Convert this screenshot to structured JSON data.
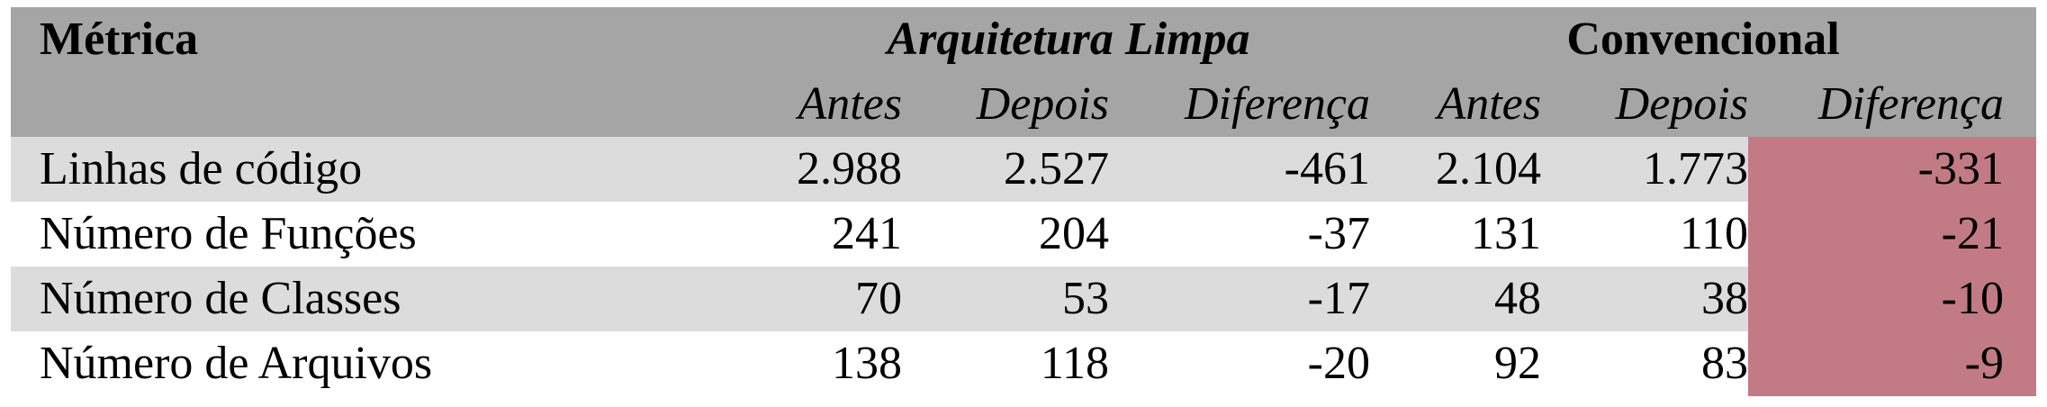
{
  "table": {
    "metric_header": "Métrica",
    "group_headers": {
      "clean": "Arquitetura Limpa",
      "conventional": "Convencional"
    },
    "sub_headers": {
      "before": "Antes",
      "after": "Depois",
      "difference": "Diferença"
    },
    "rows": [
      {
        "label": "Linhas de código",
        "clean_before": "2.988",
        "clean_after": "2.527",
        "clean_diff": "-461",
        "conv_before": "2.104",
        "conv_after": "1.773",
        "conv_diff": "-331"
      },
      {
        "label": "Número de Funções",
        "clean_before": "241",
        "clean_after": "204",
        "clean_diff": "-37",
        "conv_before": "131",
        "conv_after": "110",
        "conv_diff": "-21"
      },
      {
        "label": "Número de Classes",
        "clean_before": "70",
        "clean_after": "53",
        "clean_diff": "-17",
        "conv_before": "48",
        "conv_after": "38",
        "conv_diff": "-10"
      },
      {
        "label": "Número de Arquivos",
        "clean_before": "138",
        "clean_after": "118",
        "clean_diff": "-20",
        "conv_before": "92",
        "conv_after": "83",
        "conv_diff": "-9"
      }
    ],
    "colors": {
      "header_bg": "#a5a5a5",
      "alt_row_bg": "#dcdcdc",
      "highlight_bg": "#c27b84"
    }
  }
}
